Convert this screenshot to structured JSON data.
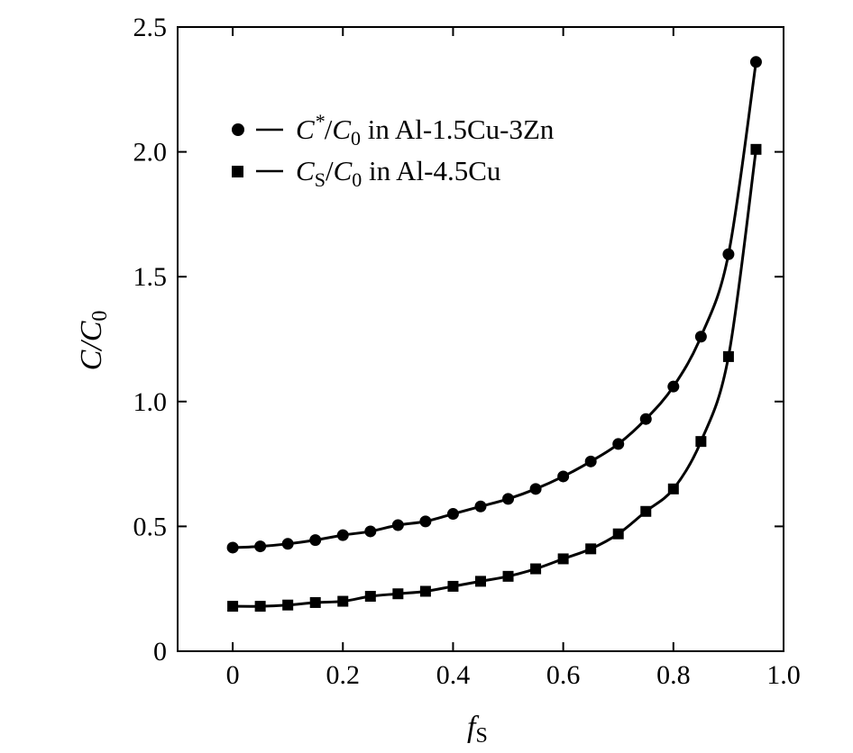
{
  "chart_data": {
    "type": "line",
    "title": "",
    "xlabel": {
      "main": "f",
      "sub": "S"
    },
    "ylabel": {
      "main": "C/C",
      "sub": "0"
    },
    "xlim": [
      -0.1,
      1.0
    ],
    "ylim": [
      0,
      2.5
    ],
    "xticks": [
      0,
      0.2,
      0.4,
      0.6,
      0.8,
      1.0
    ],
    "xtick_labels": [
      "0",
      "0.2",
      "0.4",
      "0.6",
      "0.8",
      "1.0"
    ],
    "yticks": [
      0,
      0.5,
      1.0,
      1.5,
      2.0,
      2.5
    ],
    "ytick_labels": [
      "0",
      "0.5",
      "1.0",
      "1.5",
      "2.0",
      "2.5"
    ],
    "grid": false,
    "legend_position": "top-left",
    "series": [
      {
        "name": "C*/C0 in Al-1.5Cu-3Zn",
        "legend": {
          "var": "C",
          "sup": "*",
          "den": "C",
          "den_sub": "0",
          "rest": " in Al-1.5Cu-3Zn"
        },
        "marker": "circle",
        "color": "#000000",
        "x": [
          0,
          0.05,
          0.1,
          0.15,
          0.2,
          0.25,
          0.3,
          0.35,
          0.4,
          0.45,
          0.5,
          0.55,
          0.6,
          0.65,
          0.7,
          0.75,
          0.8,
          0.85,
          0.9,
          0.95
        ],
        "y": [
          0.415,
          0.42,
          0.43,
          0.445,
          0.465,
          0.48,
          0.505,
          0.52,
          0.55,
          0.58,
          0.61,
          0.65,
          0.7,
          0.76,
          0.83,
          0.93,
          1.06,
          1.26,
          1.59,
          2.36
        ]
      },
      {
        "name": "CS/C0 in Al-4.5Cu",
        "legend": {
          "var": "C",
          "var_sub": "S",
          "den": "C",
          "den_sub": "0",
          "rest": " in Al-4.5Cu"
        },
        "marker": "square",
        "color": "#000000",
        "x": [
          0,
          0.05,
          0.1,
          0.15,
          0.2,
          0.25,
          0.3,
          0.35,
          0.4,
          0.45,
          0.5,
          0.55,
          0.6,
          0.65,
          0.7,
          0.75,
          0.8,
          0.85,
          0.9,
          0.95
        ],
        "y": [
          0.18,
          0.18,
          0.185,
          0.195,
          0.2,
          0.22,
          0.23,
          0.24,
          0.26,
          0.28,
          0.3,
          0.33,
          0.37,
          0.41,
          0.47,
          0.56,
          0.65,
          0.84,
          1.18,
          2.01
        ]
      }
    ]
  }
}
